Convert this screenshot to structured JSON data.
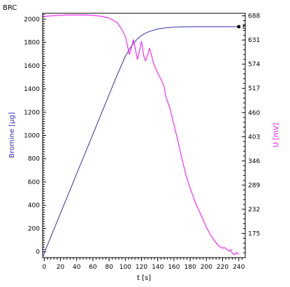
{
  "chart_data": {
    "type": "line",
    "title": "BRC",
    "xlabel": "t [s]",
    "ylabel_left": "Bromine [µg]",
    "ylabel_right": "U [mV]",
    "xlim": [
      -2,
      248
    ],
    "ylim_left": [
      -50,
      2050
    ],
    "ylim_right": [
      118,
      694
    ],
    "x_ticks": [
      "0",
      "20",
      "40",
      "60",
      "80",
      "100",
      "120",
      "140",
      "160",
      "180",
      "200",
      "220",
      "240"
    ],
    "y_left_ticks": [
      "0",
      "200",
      "400",
      "600",
      "800",
      "1000",
      "1200",
      "1400",
      "1600",
      "1800",
      "2000"
    ],
    "y_right_ticks": [
      "175",
      "232",
      "289",
      "346",
      "403",
      "460",
      "517",
      "574",
      "631",
      "688"
    ],
    "grid": false,
    "end_marker_label": "E",
    "series": [
      {
        "name": "Bromine [µg]",
        "axis": "left",
        "color": "#2f2fb0",
        "x": [
          -1,
          0,
          10,
          20,
          30,
          40,
          50,
          60,
          70,
          80,
          90,
          100,
          105,
          110,
          115,
          120,
          125,
          130,
          140,
          150,
          160,
          170,
          180,
          200,
          220,
          240
        ],
        "y": [
          -40,
          -10,
          160,
          330,
          500,
          670,
          840,
          1010,
          1180,
          1350,
          1520,
          1680,
          1740,
          1790,
          1830,
          1860,
          1880,
          1895,
          1915,
          1925,
          1930,
          1933,
          1935,
          1935,
          1935,
          1935
        ]
      },
      {
        "name": "U [mV]",
        "axis": "right",
        "color": "#ff00ff",
        "x": [
          -1,
          0,
          10,
          20,
          30,
          40,
          50,
          60,
          70,
          80,
          90,
          95,
          100,
          103,
          105,
          107,
          110,
          112,
          115,
          118,
          120,
          123,
          125,
          128,
          130,
          133,
          135,
          138,
          140,
          145,
          148,
          150,
          155,
          160,
          165,
          170,
          175,
          180,
          185,
          190,
          195,
          200,
          205,
          210,
          215,
          220,
          222,
          225,
          228,
          230,
          232,
          235,
          237,
          240
        ],
        "y": [
          686,
          687,
          688,
          689,
          690,
          690,
          690,
          689,
          687,
          683,
          672,
          658,
          640,
          615,
          597,
          608,
          632,
          614,
          585,
          610,
          628,
          592,
          582,
          598,
          612,
          590,
          575,
          562,
          553,
          535,
          520,
          498,
          470,
          432,
          392,
          350,
          312,
          282,
          255,
          232,
          212,
          190,
          172,
          158,
          146,
          140,
          142,
          138,
          133,
          137,
          128,
          125,
          130,
          126
        ]
      }
    ],
    "end_marker": {
      "series": "Bromine [µg]",
      "x": 240,
      "y": 1935
    }
  }
}
